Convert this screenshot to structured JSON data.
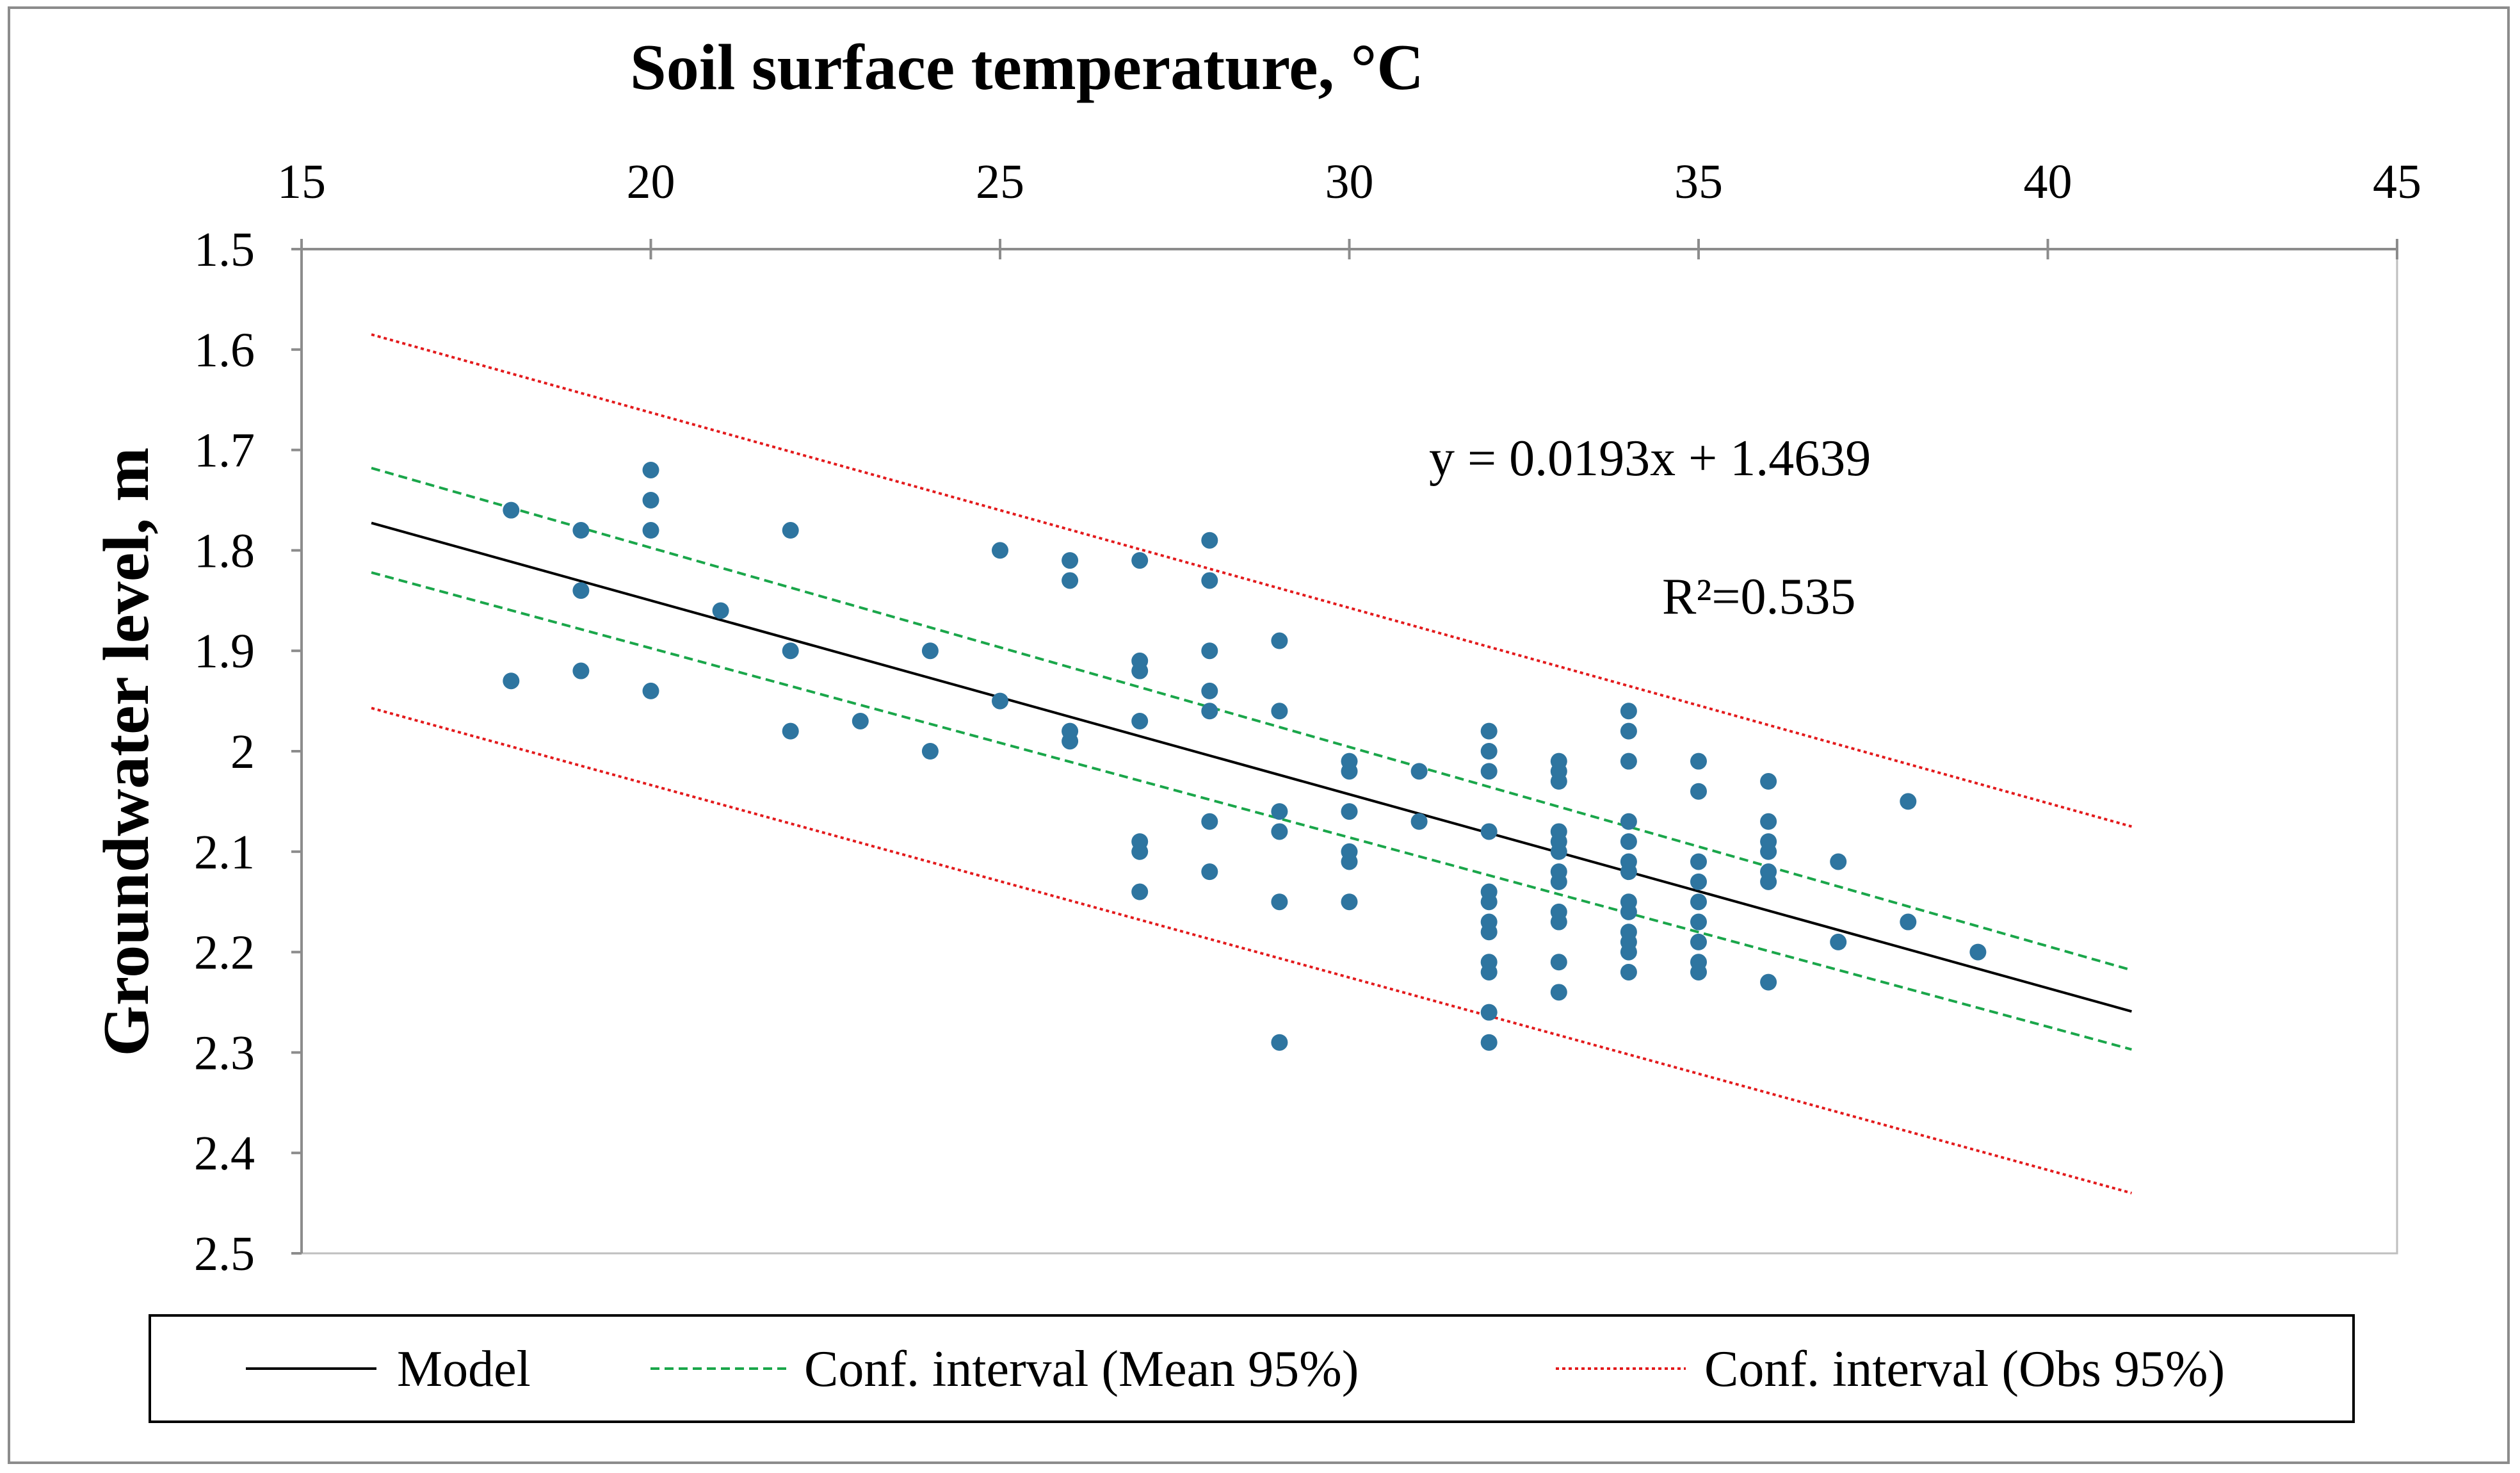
{
  "chart_data": {
    "type": "scatter",
    "title": "Soil surface temperature, °C",
    "xlabel": "Soil surface temperature, °C",
    "ylabel": "Groundwater level, m",
    "xlim": [
      15,
      45
    ],
    "ylim": [
      1.5,
      2.5
    ],
    "y_axis_inverted": true,
    "x_axis_position": "top",
    "x_ticks": [
      15,
      20,
      25,
      30,
      35,
      40,
      45
    ],
    "x_tick_labels": [
      "15",
      "20",
      "25",
      "30",
      "35",
      "40",
      "45"
    ],
    "y_ticks": [
      1.5,
      1.6,
      1.7,
      1.8,
      1.9,
      2.0,
      2.1,
      2.2,
      2.3,
      2.4,
      2.5
    ],
    "y_tick_labels": [
      "1.5",
      "1.6",
      "1.7",
      "1.8",
      "1.9",
      "2",
      "2.1",
      "2.2",
      "2.3",
      "2.4",
      "2.5"
    ],
    "grid": false,
    "legend_position": "bottom",
    "annotations": {
      "equation": "y = 0.0193x + 1.4639",
      "r_squared": "R²=0.535"
    },
    "series": [
      {
        "name": "Observations",
        "kind": "points",
        "color": "#2e75a0",
        "points": [
          [
            18,
            1.76
          ],
          [
            18,
            1.93
          ],
          [
            19,
            1.78
          ],
          [
            19,
            1.84
          ],
          [
            19,
            1.92
          ],
          [
            20,
            1.72
          ],
          [
            20,
            1.75
          ],
          [
            20,
            1.78
          ],
          [
            20,
            1.94
          ],
          [
            21,
            1.86
          ],
          [
            22,
            1.78
          ],
          [
            22,
            1.9
          ],
          [
            22,
            1.98
          ],
          [
            23,
            1.97
          ],
          [
            24,
            1.9
          ],
          [
            24,
            2.0
          ],
          [
            25,
            1.8
          ],
          [
            25,
            1.95
          ],
          [
            26,
            1.81
          ],
          [
            26,
            1.83
          ],
          [
            26,
            1.98
          ],
          [
            26,
            1.99
          ],
          [
            27,
            1.81
          ],
          [
            27,
            1.91
          ],
          [
            27,
            1.92
          ],
          [
            27,
            1.97
          ],
          [
            27,
            2.09
          ],
          [
            27,
            2.1
          ],
          [
            27,
            2.14
          ],
          [
            28,
            1.79
          ],
          [
            28,
            1.83
          ],
          [
            28,
            1.9
          ],
          [
            28,
            1.94
          ],
          [
            28,
            1.96
          ],
          [
            28,
            2.07
          ],
          [
            28,
            2.12
          ],
          [
            29,
            1.89
          ],
          [
            29,
            1.96
          ],
          [
            29,
            2.06
          ],
          [
            29,
            2.08
          ],
          [
            29,
            2.15
          ],
          [
            29,
            2.29
          ],
          [
            30,
            2.01
          ],
          [
            30,
            2.02
          ],
          [
            30,
            2.06
          ],
          [
            30,
            2.1
          ],
          [
            30,
            2.11
          ],
          [
            30,
            2.15
          ],
          [
            31,
            2.02
          ],
          [
            31,
            2.07
          ],
          [
            32,
            1.98
          ],
          [
            32,
            2.0
          ],
          [
            32,
            2.02
          ],
          [
            32,
            2.08
          ],
          [
            32,
            2.14
          ],
          [
            32,
            2.15
          ],
          [
            32,
            2.17
          ],
          [
            32,
            2.18
          ],
          [
            32,
            2.21
          ],
          [
            32,
            2.22
          ],
          [
            32,
            2.26
          ],
          [
            32,
            2.29
          ],
          [
            33,
            2.01
          ],
          [
            33,
            2.02
          ],
          [
            33,
            2.03
          ],
          [
            33,
            2.08
          ],
          [
            33,
            2.09
          ],
          [
            33,
            2.1
          ],
          [
            33,
            2.12
          ],
          [
            33,
            2.13
          ],
          [
            33,
            2.16
          ],
          [
            33,
            2.17
          ],
          [
            33,
            2.21
          ],
          [
            33,
            2.24
          ],
          [
            34,
            1.96
          ],
          [
            34,
            1.98
          ],
          [
            34,
            2.01
          ],
          [
            34,
            2.07
          ],
          [
            34,
            2.09
          ],
          [
            34,
            2.11
          ],
          [
            34,
            2.12
          ],
          [
            34,
            2.15
          ],
          [
            34,
            2.16
          ],
          [
            34,
            2.18
          ],
          [
            34,
            2.19
          ],
          [
            34,
            2.2
          ],
          [
            34,
            2.22
          ],
          [
            35,
            2.01
          ],
          [
            35,
            2.04
          ],
          [
            35,
            2.11
          ],
          [
            35,
            2.13
          ],
          [
            35,
            2.15
          ],
          [
            35,
            2.17
          ],
          [
            35,
            2.19
          ],
          [
            35,
            2.21
          ],
          [
            35,
            2.22
          ],
          [
            36,
            2.03
          ],
          [
            36,
            2.07
          ],
          [
            36,
            2.09
          ],
          [
            36,
            2.1
          ],
          [
            36,
            2.12
          ],
          [
            36,
            2.13
          ],
          [
            36,
            2.23
          ],
          [
            37,
            2.11
          ],
          [
            37,
            2.19
          ],
          [
            38,
            2.05
          ],
          [
            38,
            2.17
          ],
          [
            39,
            2.2
          ]
        ]
      },
      {
        "name": "Model",
        "kind": "line",
        "style": "solid",
        "color": "#000000",
        "points": [
          [
            16,
            1.7727
          ],
          [
            41.2,
            2.2591
          ]
        ]
      },
      {
        "name": "Conf. interval (Mean 95%)",
        "kind": "line",
        "style": "dashed",
        "color": "#1aa64a",
        "points": [
          [
            16,
            1.718
          ],
          [
            41.2,
            2.218
          ]
        ]
      },
      {
        "name": "Conf. interval (Mean 95%) lower",
        "kind": "line",
        "style": "dashed",
        "color": "#1aa64a",
        "points": [
          [
            16,
            1.822
          ],
          [
            41.2,
            2.297
          ]
        ]
      },
      {
        "name": "Conf. interval (Obs 95%)",
        "kind": "line",
        "style": "dotted",
        "color": "#e31a1c",
        "points": [
          [
            16,
            1.585
          ],
          [
            41.2,
            2.075
          ]
        ]
      },
      {
        "name": "Conf. interval (Obs 95%) lower",
        "kind": "line",
        "style": "dotted",
        "color": "#e31a1c",
        "points": [
          [
            16,
            1.957
          ],
          [
            41.2,
            2.44
          ]
        ]
      }
    ],
    "legend": [
      {
        "label": "Model",
        "style": "solid",
        "color": "#000000"
      },
      {
        "label": "Conf. interval (Mean 95%)",
        "style": "dashed",
        "color": "#1aa64a"
      },
      {
        "label": "Conf. interval (Obs 95%)",
        "style": "dotted",
        "color": "#e31a1c"
      }
    ]
  }
}
